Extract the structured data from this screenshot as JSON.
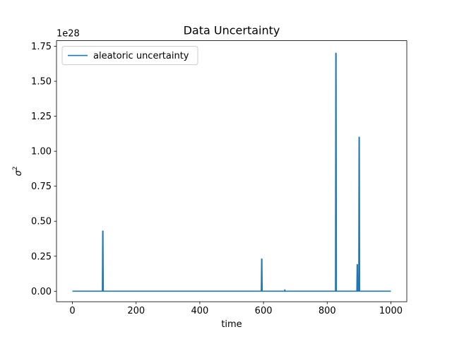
{
  "chart_data": {
    "type": "line",
    "title": "Data Uncertainty",
    "xlabel": "time",
    "ylabel": "σ",
    "ylabel_superscript": "2",
    "offset_text": "1e28",
    "y_multiplier": 1e+28,
    "xlim": [
      -50,
      1050
    ],
    "ylim": [
      -0.075,
      1.79
    ],
    "x_ticks": [
      0,
      200,
      400,
      600,
      800,
      1000
    ],
    "x_tick_labels": [
      "0",
      "200",
      "400",
      "600",
      "800",
      "1000"
    ],
    "y_ticks": [
      0.0,
      0.25,
      0.5,
      0.75,
      1.0,
      1.25,
      1.5,
      1.75
    ],
    "y_tick_labels": [
      "0.00",
      "0.25",
      "0.50",
      "0.75",
      "1.00",
      "1.25",
      "1.50",
      "1.75"
    ],
    "grid": false,
    "legend_position": "top-left",
    "series": [
      {
        "name": "aleatoric uncertainty",
        "color": "#1f77b4",
        "x": [
          0,
          94,
          95,
          96,
          97,
          593,
          594,
          595,
          596,
          666,
          667,
          668,
          826,
          827,
          828,
          829,
          893,
          894,
          895,
          896,
          899,
          900,
          901,
          902,
          1000
        ],
        "y": [
          0,
          0,
          0.43,
          0.43,
          0,
          0,
          0.23,
          0.23,
          0,
          0,
          0.01,
          0,
          0,
          1.7,
          1.7,
          0,
          0,
          0.19,
          0.19,
          0,
          0,
          1.1,
          1.1,
          0,
          0
        ]
      }
    ]
  }
}
